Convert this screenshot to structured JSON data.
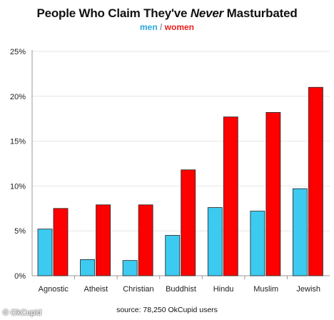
{
  "title": {
    "before": "People Who Claim They've ",
    "emph": "Never",
    "after": " Masturbated"
  },
  "legend": {
    "men": "men",
    "sep": " / ",
    "women": "women"
  },
  "source": "source: 78,250 OkCupid users",
  "credit": "© OkCupid",
  "colors": {
    "men": "#3ccaf0",
    "women": "#ff0000",
    "men_text": "#2aa9dc",
    "women_text": "#ee1c1c"
  },
  "chart_data": {
    "type": "bar",
    "title": "People Who Claim They've Never Masturbated",
    "categories": [
      "Agnostic",
      "Atheist",
      "Christian",
      "Buddhist",
      "Hindu",
      "Muslim",
      "Jewish"
    ],
    "series": [
      {
        "name": "men",
        "values": [
          5.2,
          1.8,
          1.7,
          4.5,
          7.6,
          7.2,
          9.7
        ]
      },
      {
        "name": "women",
        "values": [
          7.5,
          7.9,
          7.9,
          11.8,
          17.7,
          18.2,
          21.0
        ]
      }
    ],
    "ylim": [
      0,
      25
    ],
    "yticks": [
      "0%",
      "5%",
      "10%",
      "15%",
      "20%",
      "25%"
    ],
    "grid": true,
    "legend": "top-center"
  }
}
